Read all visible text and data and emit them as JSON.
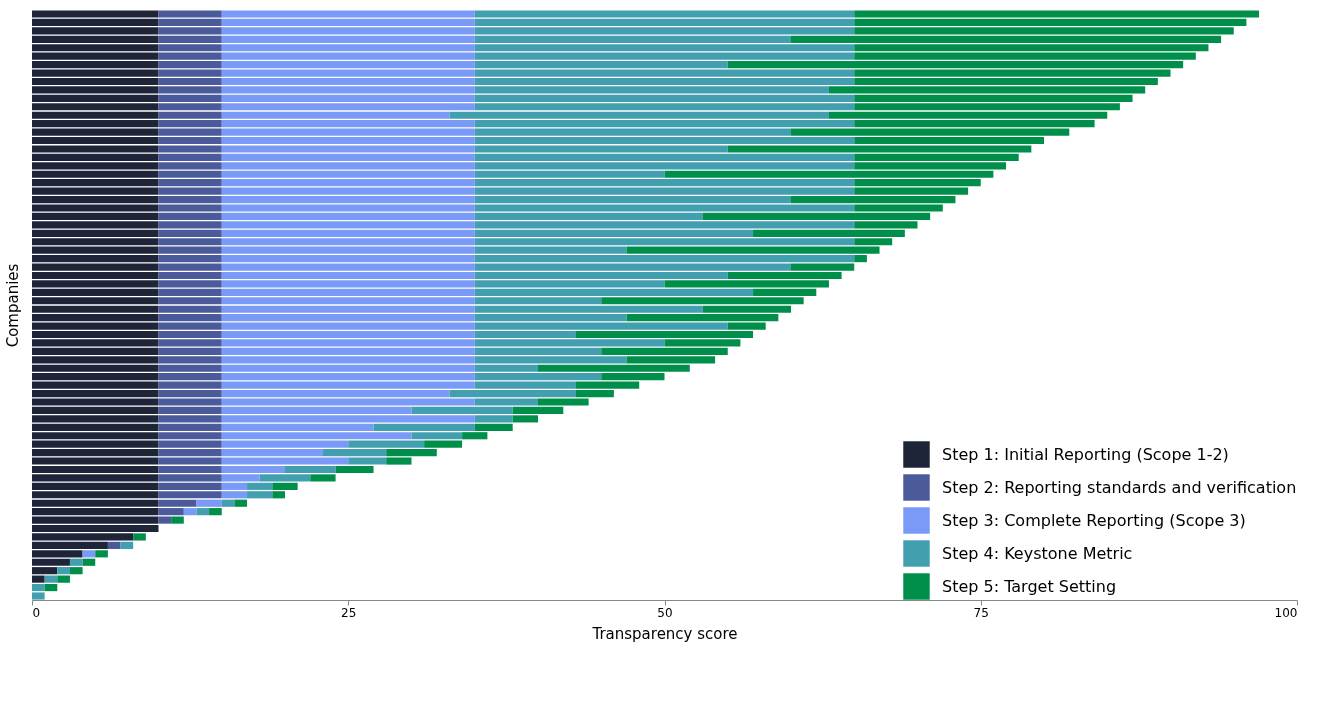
{
  "chart_data": {
    "type": "bar",
    "orientation": "horizontal",
    "stacked": true,
    "xlabel": "Transparency score",
    "ylabel": "Companies",
    "categories": [
      null,
      null,
      null,
      null,
      null,
      null,
      null,
      null,
      null,
      null,
      null,
      null,
      null,
      null,
      null,
      null,
      null,
      null,
      null,
      null,
      null,
      null,
      null,
      null,
      null,
      null,
      null,
      null,
      null,
      null,
      null,
      null,
      null,
      null,
      null,
      null,
      null,
      null,
      null,
      null,
      null,
      null,
      null,
      null,
      null,
      null,
      null,
      null,
      null,
      null,
      null,
      null,
      null,
      null,
      null,
      null,
      null,
      null,
      null,
      null,
      null,
      null,
      null,
      null,
      null,
      null,
      null,
      null,
      null,
      null
    ],
    "xlim": [
      0,
      100
    ],
    "xticks": [
      0,
      25,
      50,
      75,
      100
    ],
    "grid": false,
    "legend": "bottom right",
    "tick_labels": "x",
    "series": [
      {
        "name": "Step 1: Initial Reporting (Scope 1-2)",
        "color": "#1e2538",
        "values": [
          10,
          10,
          10,
          10,
          10,
          10,
          10,
          10,
          10,
          10,
          10,
          10,
          10,
          10,
          10,
          10,
          10,
          10,
          10,
          10,
          10,
          10,
          10,
          10,
          10,
          10,
          10,
          10,
          10,
          10,
          10,
          10,
          10,
          10,
          10,
          10,
          10,
          10,
          10,
          10,
          10,
          10,
          10,
          10,
          10,
          10,
          10,
          10,
          10,
          10,
          10,
          10,
          10,
          10,
          10,
          10,
          10,
          10,
          10,
          10,
          10,
          10,
          8,
          6,
          4,
          3,
          2,
          1,
          null,
          null
        ]
      },
      {
        "name": "Step 2: Reporting standards and verification",
        "color": "#4a5a9a",
        "values": [
          5,
          5,
          5,
          5,
          5,
          5,
          5,
          5,
          5,
          5,
          5,
          5,
          5,
          5,
          5,
          5,
          5,
          5,
          5,
          5,
          5,
          5,
          5,
          5,
          5,
          5,
          5,
          5,
          5,
          5,
          5,
          5,
          5,
          5,
          5,
          5,
          5,
          5,
          5,
          5,
          5,
          5,
          5,
          5,
          5,
          5,
          5,
          5,
          5,
          5,
          5,
          5,
          5,
          5,
          5,
          5,
          5,
          5,
          3,
          2,
          1,
          null,
          null,
          1,
          null,
          null,
          null,
          null,
          null,
          null
        ]
      },
      {
        "name": "Step 3: Complete Reporting (Scope 3)",
        "color": "#7a9af8",
        "values": [
          20,
          20,
          20,
          20,
          20,
          20,
          20,
          20,
          20,
          20,
          20,
          20,
          18,
          20,
          20,
          20,
          20,
          20,
          20,
          20,
          20,
          20,
          20,
          20,
          20,
          20,
          20,
          20,
          20,
          20,
          20,
          20,
          20,
          20,
          20,
          20,
          20,
          20,
          20,
          20,
          20,
          20,
          20,
          20,
          20,
          18,
          20,
          15,
          20,
          12,
          15,
          10,
          8,
          10,
          5,
          3,
          2,
          2,
          2,
          1,
          null,
          null,
          null,
          null,
          1,
          null,
          null,
          null,
          null,
          null
        ]
      },
      {
        "name": "Step 4: Keystone Metric",
        "color": "#429fb0",
        "values": [
          30,
          30,
          30,
          25,
          30,
          30,
          20,
          30,
          30,
          28,
          30,
          30,
          30,
          30,
          25,
          30,
          20,
          30,
          30,
          15,
          30,
          30,
          25,
          30,
          18,
          30,
          22,
          30,
          12,
          30,
          25,
          20,
          15,
          22,
          10,
          18,
          12,
          20,
          8,
          15,
          10,
          12,
          5,
          10,
          8,
          10,
          5,
          8,
          3,
          8,
          4,
          6,
          5,
          3,
          4,
          4,
          2,
          2,
          1,
          1,
          null,
          null,
          null,
          1,
          null,
          1,
          1,
          1,
          1,
          1
        ]
      },
      {
        "name": "Step 5: Target Setting",
        "color": "#008f4a",
        "values": [
          32,
          31,
          30,
          34,
          28,
          27,
          36,
          25,
          24,
          25,
          22,
          21,
          22,
          19,
          22,
          15,
          24,
          13,
          12,
          26,
          10,
          9,
          13,
          7,
          18,
          5,
          12,
          3,
          20,
          1,
          5,
          9,
          13,
          5,
          16,
          7,
          12,
          3,
          14,
          6,
          10,
          7,
          12,
          5,
          5,
          3,
          4,
          4,
          2,
          3,
          2,
          3,
          4,
          2,
          3,
          2,
          2,
          1,
          1,
          1,
          1,
          null,
          1,
          null,
          1,
          1,
          1,
          1,
          1,
          null
        ]
      }
    ]
  }
}
